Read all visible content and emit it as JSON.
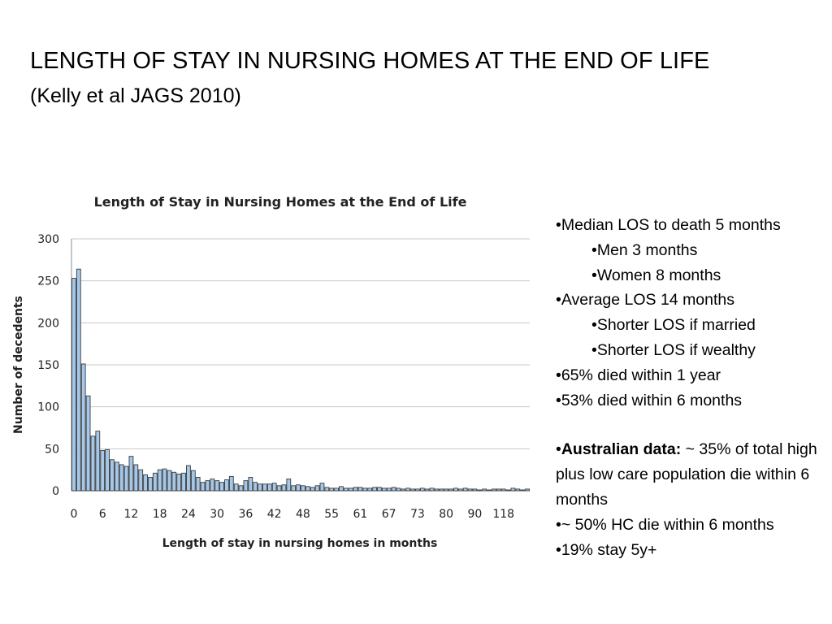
{
  "slide": {
    "title": "LENGTH OF STAY IN NURSING HOMES AT THE END OF LIFE",
    "subtitle": "(Kelly et al JAGS 2010)"
  },
  "bullets": {
    "b1": "•Median LOS to death 5 months",
    "b1a": "•Men 3 months",
    "b1b": "•Women 8 months",
    "b2": "•Average LOS 14 months",
    "b2a": "•Shorter LOS if married",
    "b2b": "•Shorter LOS if wealthy",
    "b3": "•65% died within 1 year",
    "b4": "•53% died within 6 months",
    "b5_prefix": "•",
    "b5_bold": "Australian data:",
    "b5_rest": " ~ 35% of total high plus low care population die within 6 months",
    "b6": "•~ 50% HC die within 6 months",
    "b7": "•19% stay 5y+"
  },
  "chart_data": {
    "type": "bar",
    "title": "Length of Stay in Nursing Homes at the End of Life",
    "xlabel": "Length of stay in nursing homes in months",
    "ylabel": "Number of decedents",
    "ylim": [
      0,
      300
    ],
    "yticks": [
      0,
      50,
      100,
      150,
      200,
      250,
      300
    ],
    "grid": true,
    "x_tick_labels": [
      "0",
      "6",
      "12",
      "18",
      "24",
      "30",
      "36",
      "42",
      "48",
      "55",
      "61",
      "67",
      "73",
      "80",
      "90",
      "118"
    ],
    "bar_color": "#a6c8e8",
    "values": [
      253,
      264,
      151,
      113,
      65,
      71,
      48,
      49,
      37,
      34,
      31,
      29,
      41,
      31,
      25,
      19,
      16,
      21,
      25,
      26,
      24,
      22,
      20,
      21,
      30,
      24,
      16,
      10,
      12,
      14,
      12,
      10,
      13,
      17,
      8,
      6,
      12,
      16,
      10,
      8,
      8,
      8,
      9,
      6,
      7,
      14,
      6,
      7,
      6,
      5,
      4,
      6,
      9,
      4,
      3,
      3,
      5,
      3,
      3,
      4,
      4,
      3,
      3,
      4,
      4,
      3,
      3,
      4,
      3,
      2,
      3,
      2,
      2,
      3,
      2,
      3,
      2,
      2,
      2,
      2,
      3,
      2,
      3,
      2,
      2,
      1,
      2,
      1,
      2,
      2,
      2,
      1,
      3,
      2,
      1,
      2
    ]
  }
}
